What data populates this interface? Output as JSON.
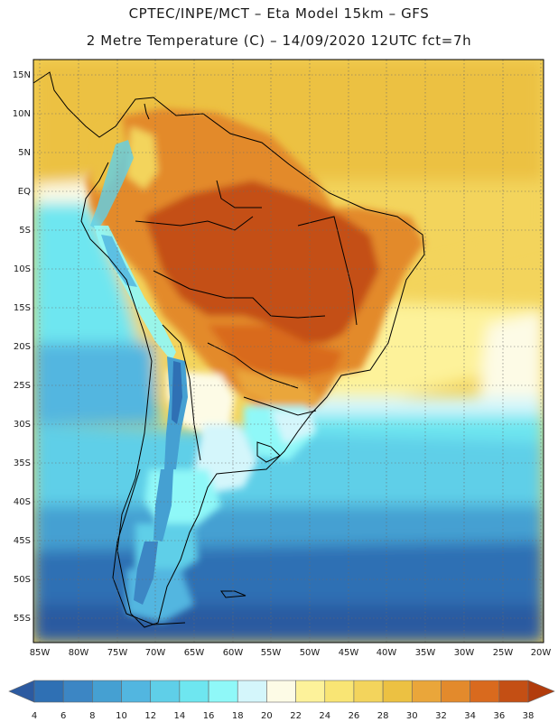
{
  "header": {
    "line1": "CPTEC/INPE/MCT –  Eta Model 15km – GFS",
    "line2": "2 Metre Temperature (C) – 14/09/2020 12UTC fct=7h"
  },
  "map": {
    "lat_labels": [
      "15N",
      "10N",
      "5N",
      "EQ",
      "5S",
      "10S",
      "15S",
      "20S",
      "25S",
      "30S",
      "35S",
      "40S",
      "45S",
      "50S",
      "55S"
    ],
    "lon_labels": [
      "85W",
      "80W",
      "75W",
      "70W",
      "65W",
      "60W",
      "55W",
      "50W",
      "45W",
      "40W",
      "35W",
      "30W",
      "25W",
      "20W"
    ]
  },
  "colorbar": {
    "labels": [
      "4",
      "6",
      "8",
      "10",
      "12",
      "14",
      "16",
      "18",
      "20",
      "22",
      "24",
      "26",
      "28",
      "30",
      "32",
      "34",
      "36",
      "38"
    ],
    "colors": [
      "#2c5aa0",
      "#2f70b4",
      "#3c86c4",
      "#45a0d2",
      "#52b6e0",
      "#5fcfe8",
      "#6ee6f0",
      "#8ff8f8",
      "#d4f6fb",
      "#fdfbe6",
      "#fdf29a",
      "#f9e574",
      "#f3d45c",
      "#ecc142",
      "#eaa63a",
      "#e38a2c",
      "#d96a1e",
      "#c44f14",
      "#b23c0c"
    ]
  }
}
